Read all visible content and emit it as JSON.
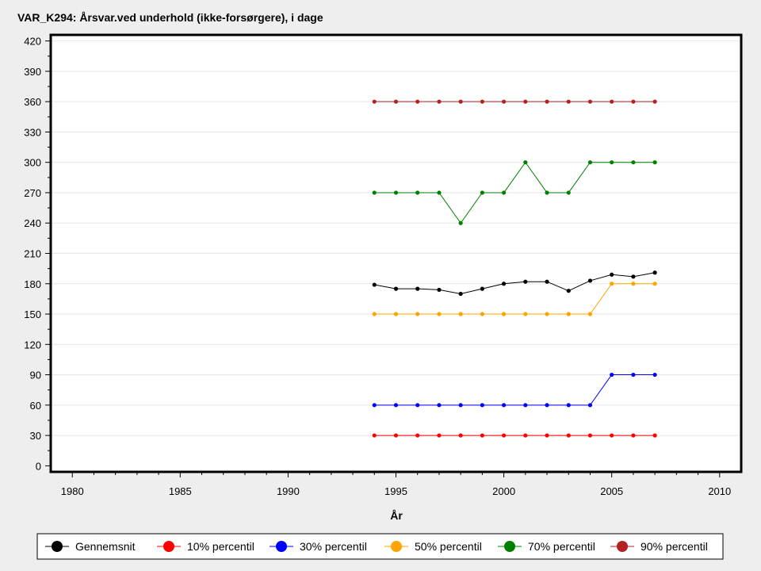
{
  "chart_data": {
    "type": "line",
    "title": "VAR_K294: Årsvar.ved underhold (ikke-forsørgere), i dage",
    "xlabel": "År",
    "ylabel": "",
    "xlim": [
      1979,
      2011
    ],
    "ylim": [
      -6,
      426
    ],
    "xticks": [
      1980,
      1985,
      1990,
      1995,
      2000,
      2005,
      2010
    ],
    "yticks": [
      0,
      30,
      60,
      90,
      120,
      150,
      180,
      210,
      240,
      270,
      300,
      330,
      360,
      390,
      420
    ],
    "grid": true,
    "legend_position": "bottom",
    "x": [
      1994,
      1995,
      1996,
      1997,
      1998,
      1999,
      2000,
      2001,
      2002,
      2003,
      2004,
      2005,
      2006,
      2007
    ],
    "series": [
      {
        "name": "Gennemsnit",
        "color": "#000000",
        "values": [
          179,
          175,
          175,
          174,
          170,
          175,
          180,
          182,
          182,
          173,
          183,
          189,
          187,
          191
        ]
      },
      {
        "name": "10% percentil",
        "color": "#ff0000",
        "values": [
          30,
          30,
          30,
          30,
          30,
          30,
          30,
          30,
          30,
          30,
          30,
          30,
          30,
          30
        ]
      },
      {
        "name": "30% percentil",
        "color": "#0000ff",
        "values": [
          60,
          60,
          60,
          60,
          60,
          60,
          60,
          60,
          60,
          60,
          60,
          90,
          90,
          90
        ]
      },
      {
        "name": "50% percentil",
        "color": "#ffa500",
        "values": [
          150,
          150,
          150,
          150,
          150,
          150,
          150,
          150,
          150,
          150,
          150,
          180,
          180,
          180
        ]
      },
      {
        "name": "70% percentil",
        "color": "#008000",
        "values": [
          270,
          270,
          270,
          270,
          240,
          270,
          270,
          300,
          270,
          270,
          300,
          300,
          300,
          300
        ]
      },
      {
        "name": "90% percentil",
        "color": "#b22222",
        "values": [
          360,
          360,
          360,
          360,
          360,
          360,
          360,
          360,
          360,
          360,
          360,
          360,
          360,
          360
        ]
      }
    ]
  }
}
